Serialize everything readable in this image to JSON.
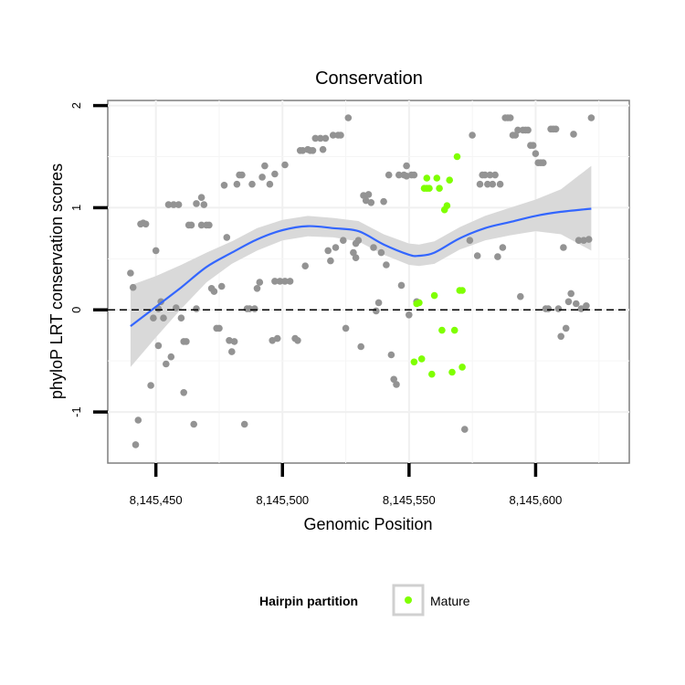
{
  "chart_data": {
    "type": "scatter",
    "title": "Conservation",
    "xlabel": "Genomic Position",
    "ylabel": "phyloP LRT conservation scores",
    "xlim": [
      8145431,
      8145637
    ],
    "ylim": [
      -1.5,
      2.05
    ],
    "xticks": [
      8145450,
      8145500,
      8145550,
      8145600
    ],
    "xtick_labels": [
      "8,145,450",
      "8,145,500",
      "8,145,550",
      "8,145,600"
    ],
    "yticks": [
      -1,
      0,
      1,
      2
    ],
    "ytick_labels": [
      "-1",
      "0",
      "1",
      "2"
    ],
    "grid": true,
    "reference_line": {
      "y": 0,
      "style": "dashed"
    },
    "legend": {
      "title": "Hairpin partition",
      "placement": "bottom",
      "entries": [
        {
          "label": "Mature",
          "color": "#7fff00"
        }
      ]
    },
    "colors": {
      "other_points": "#939393",
      "mature_points": "#7fff00",
      "smooth_line": "#3366ff",
      "confidence_band": "#d9d9d9"
    },
    "series": [
      {
        "role": "other",
        "points": [
          [
            8145440,
            0.36
          ],
          [
            8145441,
            0.22
          ],
          [
            8145442,
            -1.32
          ],
          [
            8145443,
            -1.08
          ],
          [
            8145444,
            0.84
          ],
          [
            8145445,
            0.85
          ],
          [
            8145446,
            0.84
          ],
          [
            8145448,
            -0.74
          ],
          [
            8145449,
            -0.08
          ],
          [
            8145450,
            0.58
          ],
          [
            8145451,
            0.01
          ],
          [
            8145451,
            -0.35
          ],
          [
            8145452,
            0.08
          ],
          [
            8145453,
            -0.08
          ],
          [
            8145454,
            -0.53
          ],
          [
            8145455,
            1.03
          ],
          [
            8145456,
            -0.46
          ],
          [
            8145457,
            1.03
          ],
          [
            8145458,
            0.02
          ],
          [
            8145459,
            1.03
          ],
          [
            8145460,
            -0.08
          ],
          [
            8145461,
            -0.31
          ],
          [
            8145461,
            -0.81
          ],
          [
            8145462,
            -0.31
          ],
          [
            8145463,
            0.83
          ],
          [
            8145464,
            0.83
          ],
          [
            8145465,
            -1.12
          ],
          [
            8145466,
            1.04
          ],
          [
            8145466,
            0.01
          ],
          [
            8145468,
            0.83
          ],
          [
            8145468,
            1.1
          ],
          [
            8145469,
            1.03
          ],
          [
            8145470,
            0.83
          ],
          [
            8145471,
            0.83
          ],
          [
            8145472,
            0.21
          ],
          [
            8145473,
            0.18
          ],
          [
            8145474,
            -0.18
          ],
          [
            8145475,
            -0.18
          ],
          [
            8145476,
            0.23
          ],
          [
            8145477,
            1.22
          ],
          [
            8145478,
            0.71
          ],
          [
            8145479,
            -0.3
          ],
          [
            8145480,
            -0.41
          ],
          [
            8145481,
            -0.31
          ],
          [
            8145482,
            1.23
          ],
          [
            8145483,
            1.32
          ],
          [
            8145484,
            1.32
          ],
          [
            8145485,
            -1.12
          ],
          [
            8145486,
            0.01
          ],
          [
            8145487,
            0.01
          ],
          [
            8145488,
            1.23
          ],
          [
            8145489,
            0.01
          ],
          [
            8145490,
            0.21
          ],
          [
            8145491,
            0.27
          ],
          [
            8145492,
            1.3
          ],
          [
            8145493,
            1.41
          ],
          [
            8145495,
            1.23
          ],
          [
            8145496,
            -0.3
          ],
          [
            8145497,
            0.28
          ],
          [
            8145497,
            1.33
          ],
          [
            8145498,
            -0.28
          ],
          [
            8145499,
            0.28
          ],
          [
            8145501,
            1.42
          ],
          [
            8145501,
            0.28
          ],
          [
            8145503,
            0.28
          ],
          [
            8145505,
            -0.28
          ],
          [
            8145506,
            -0.3
          ],
          [
            8145507,
            1.56
          ],
          [
            8145508,
            1.56
          ],
          [
            8145509,
            0.43
          ],
          [
            8145510,
            1.57
          ],
          [
            8145511,
            1.56
          ],
          [
            8145512,
            1.56
          ],
          [
            8145513,
            1.68
          ],
          [
            8145515,
            1.68
          ],
          [
            8145516,
            1.57
          ],
          [
            8145517,
            1.68
          ],
          [
            8145518,
            0.58
          ],
          [
            8145519,
            0.48
          ],
          [
            8145520,
            1.71
          ],
          [
            8145521,
            0.61
          ],
          [
            8145522,
            1.71
          ],
          [
            8145523,
            1.71
          ],
          [
            8145524,
            0.68
          ],
          [
            8145525,
            -0.18
          ],
          [
            8145526,
            1.88
          ],
          [
            8145528,
            0.56
          ],
          [
            8145529,
            0.65
          ],
          [
            8145529,
            0.51
          ],
          [
            8145530,
            0.68
          ],
          [
            8145531,
            -0.36
          ],
          [
            8145532,
            1.12
          ],
          [
            8145533,
            1.07
          ],
          [
            8145534,
            1.13
          ],
          [
            8145535,
            1.05
          ],
          [
            8145536,
            0.61
          ],
          [
            8145537,
            -0.01
          ],
          [
            8145538,
            0.07
          ],
          [
            8145539,
            0.56
          ],
          [
            8145540,
            1.06
          ],
          [
            8145541,
            0.44
          ],
          [
            8145542,
            1.32
          ],
          [
            8145543,
            -0.44
          ],
          [
            8145544,
            -0.68
          ],
          [
            8145545,
            -0.73
          ],
          [
            8145546,
            1.32
          ],
          [
            8145547,
            0.24
          ],
          [
            8145548,
            1.32
          ],
          [
            8145549,
            1.41
          ],
          [
            8145549,
            1.31
          ],
          [
            8145550,
            -0.05
          ],
          [
            8145551,
            1.32
          ],
          [
            8145552,
            1.32
          ],
          [
            8145553,
            0.08
          ],
          [
            8145572,
            -1.17
          ],
          [
            8145574,
            0.68
          ],
          [
            8145575,
            1.71
          ],
          [
            8145577,
            0.53
          ],
          [
            8145578,
            1.23
          ],
          [
            8145579,
            1.32
          ],
          [
            8145580,
            1.32
          ],
          [
            8145581,
            1.23
          ],
          [
            8145582,
            1.32
          ],
          [
            8145583,
            1.23
          ],
          [
            8145584,
            1.32
          ],
          [
            8145585,
            0.52
          ],
          [
            8145586,
            1.23
          ],
          [
            8145587,
            0.61
          ],
          [
            8145588,
            1.88
          ],
          [
            8145589,
            1.88
          ],
          [
            8145590,
            1.88
          ],
          [
            8145591,
            1.71
          ],
          [
            8145592,
            1.71
          ],
          [
            8145593,
            1.76
          ],
          [
            8145594,
            0.13
          ],
          [
            8145595,
            1.76
          ],
          [
            8145596,
            1.76
          ],
          [
            8145597,
            1.76
          ],
          [
            8145598,
            1.61
          ],
          [
            8145599,
            1.61
          ],
          [
            8145600,
            1.53
          ],
          [
            8145601,
            1.44
          ],
          [
            8145602,
            1.44
          ],
          [
            8145603,
            1.44
          ],
          [
            8145604,
            0.01
          ],
          [
            8145605,
            0.01
          ],
          [
            8145606,
            1.77
          ],
          [
            8145607,
            1.77
          ],
          [
            8145608,
            1.77
          ],
          [
            8145609,
            0.01
          ],
          [
            8145610,
            -0.26
          ],
          [
            8145611,
            0.61
          ],
          [
            8145612,
            -0.18
          ],
          [
            8145613,
            0.08
          ],
          [
            8145614,
            0.16
          ],
          [
            8145615,
            1.72
          ],
          [
            8145616,
            0.06
          ],
          [
            8145617,
            0.68
          ],
          [
            8145618,
            0.01
          ],
          [
            8145619,
            0.68
          ],
          [
            8145620,
            0.04
          ],
          [
            8145621,
            0.69
          ],
          [
            8145622,
            1.88
          ]
        ]
      },
      {
        "name": "Mature",
        "role": "mature",
        "points": [
          [
            8145552,
            -0.51
          ],
          [
            8145553,
            0.06
          ],
          [
            8145554,
            0.07
          ],
          [
            8145555,
            -0.48
          ],
          [
            8145556,
            1.19
          ],
          [
            8145557,
            1.19
          ],
          [
            8145557,
            1.29
          ],
          [
            8145558,
            1.19
          ],
          [
            8145559,
            -0.63
          ],
          [
            8145560,
            0.14
          ],
          [
            8145561,
            1.29
          ],
          [
            8145562,
            1.19
          ],
          [
            8145563,
            -0.2
          ],
          [
            8145564,
            0.98
          ],
          [
            8145565,
            1.02
          ],
          [
            8145566,
            1.27
          ],
          [
            8145567,
            -0.61
          ],
          [
            8145568,
            -0.2
          ],
          [
            8145569,
            1.5
          ],
          [
            8145570,
            0.19
          ],
          [
            8145571,
            0.19
          ],
          [
            8145571,
            -0.56
          ]
        ]
      }
    ],
    "smooth": [
      [
        8145440,
        -0.16
      ],
      [
        8145450,
        0.03
      ],
      [
        8145460,
        0.22
      ],
      [
        8145470,
        0.42
      ],
      [
        8145480,
        0.56
      ],
      [
        8145490,
        0.69
      ],
      [
        8145500,
        0.78
      ],
      [
        8145510,
        0.82
      ],
      [
        8145520,
        0.8
      ],
      [
        8145530,
        0.77
      ],
      [
        8145540,
        0.64
      ],
      [
        8145550,
        0.54
      ],
      [
        8145554,
        0.53
      ],
      [
        8145560,
        0.56
      ],
      [
        8145570,
        0.7
      ],
      [
        8145580,
        0.8
      ],
      [
        8145590,
        0.86
      ],
      [
        8145600,
        0.92
      ],
      [
        8145610,
        0.96
      ],
      [
        8145622,
        0.99
      ]
    ],
    "band": [
      [
        8145440,
        -0.56,
        0.24
      ],
      [
        8145450,
        -0.27,
        0.33
      ],
      [
        8145460,
        0.01,
        0.44
      ],
      [
        8145470,
        0.27,
        0.56
      ],
      [
        8145480,
        0.45,
        0.67
      ],
      [
        8145490,
        0.58,
        0.8
      ],
      [
        8145500,
        0.68,
        0.88
      ],
      [
        8145510,
        0.72,
        0.92
      ],
      [
        8145520,
        0.71,
        0.9
      ],
      [
        8145530,
        0.67,
        0.87
      ],
      [
        8145540,
        0.54,
        0.74
      ],
      [
        8145550,
        0.44,
        0.65
      ],
      [
        8145554,
        0.43,
        0.64
      ],
      [
        8145560,
        0.45,
        0.67
      ],
      [
        8145570,
        0.59,
        0.81
      ],
      [
        8145580,
        0.68,
        0.92
      ],
      [
        8145590,
        0.73,
        1.0
      ],
      [
        8145600,
        0.77,
        1.08
      ],
      [
        8145610,
        0.74,
        1.18
      ],
      [
        8145622,
        0.58,
        1.41
      ]
    ]
  }
}
